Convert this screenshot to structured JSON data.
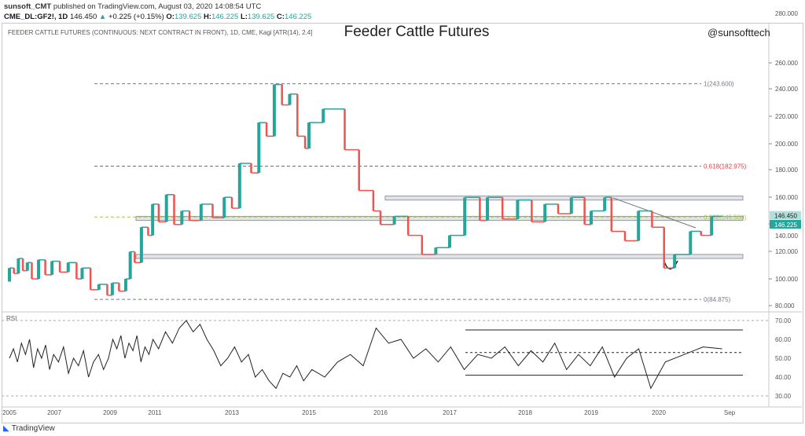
{
  "header": {
    "author": "sunsoft_CMT",
    "published": "published on TradingView.com, August 03, 2020 14:08:54 UTC",
    "symbol": "CME_DL:GF2!, 1D",
    "last": "146.450",
    "change": "+0.225 (+0.15%)",
    "o_label": "O:",
    "o": "139.625",
    "h_label": "H:",
    "h": "146.225",
    "l_label": "L:",
    "l": "139.625",
    "c_label": "C:",
    "c": "146.225"
  },
  "footer": {
    "brand": "TradingView"
  },
  "chart_data": [
    {
      "type": "line",
      "style": "kagi",
      "title": "Feeder Cattle Futures",
      "subtitle": "FEEDER CATTLE FUTURES (CONTINUOUS: NEXT CONTRACT IN FRONT), 1D, CME, Kagi [ATR(14), 2.4]",
      "watermark": "@sunsofttech",
      "y_ticks": [
        "280.000",
        "260.000",
        "240.000",
        "220.000",
        "200.000",
        "180.000",
        "160.000",
        "140.000",
        "120.000",
        "100.000",
        "80.000"
      ],
      "last_price": "146.450",
      "close_price": "146.225",
      "fib_levels": [
        {
          "label": "1(243.600)",
          "value": 243.6,
          "color": "#787b86"
        },
        {
          "label": "0.618(182.975)",
          "value": 182.975,
          "color": "#f23645"
        },
        {
          "label": "0.382(145.500)",
          "value": 145.5,
          "color": "#9fc83a"
        },
        {
          "label": "0(84.875)",
          "value": 84.875,
          "color": "#787b86"
        }
      ],
      "zones": [
        [
          158,
          161
        ],
        [
          143,
          146
        ],
        [
          115,
          118
        ]
      ],
      "colors": {
        "up": "#26a69a",
        "down": "#ef5350"
      },
      "points": [
        [
          2005,
          98
        ],
        [
          2005.2,
          108
        ],
        [
          2005.4,
          104
        ],
        [
          2005.6,
          115
        ],
        [
          2005.8,
          106
        ],
        [
          2006,
          112
        ],
        [
          2006.3,
          100
        ],
        [
          2006.6,
          114
        ],
        [
          2006.9,
          103
        ],
        [
          2007.2,
          113
        ],
        [
          2007.5,
          105
        ],
        [
          2007.8,
          112
        ],
        [
          2008,
          100
        ],
        [
          2008.3,
          108
        ],
        [
          2008.6,
          92
        ],
        [
          2008.9,
          96
        ],
        [
          2009.1,
          88
        ],
        [
          2009.4,
          97
        ],
        [
          2009.7,
          91
        ],
        [
          2009.9,
          100
        ],
        [
          2010.1,
          120
        ],
        [
          2010.4,
          112
        ],
        [
          2010.7,
          138
        ],
        [
          2010.9,
          132
        ],
        [
          2011.1,
          155
        ],
        [
          2011.3,
          142
        ],
        [
          2011.5,
          162
        ],
        [
          2011.7,
          140
        ],
        [
          2011.9,
          150
        ],
        [
          2012.2,
          143
        ],
        [
          2012.5,
          155
        ],
        [
          2012.8,
          145
        ],
        [
          2013,
          160
        ],
        [
          2013.2,
          152
        ],
        [
          2013.5,
          185
        ],
        [
          2013.7,
          178
        ],
        [
          2013.9,
          215
        ],
        [
          2014.1,
          205
        ],
        [
          2014.3,
          243
        ],
        [
          2014.5,
          228
        ],
        [
          2014.7,
          236
        ],
        [
          2014.9,
          205
        ],
        [
          2015,
          196
        ],
        [
          2015.2,
          215
        ],
        [
          2015.5,
          225
        ],
        [
          2015.7,
          195
        ],
        [
          2015.9,
          165
        ],
        [
          2016,
          150
        ],
        [
          2016.2,
          140
        ],
        [
          2016.4,
          146
        ],
        [
          2016.6,
          132
        ],
        [
          2016.8,
          118
        ],
        [
          2017,
          123
        ],
        [
          2017.2,
          132
        ],
        [
          2017.4,
          160
        ],
        [
          2017.5,
          143
        ],
        [
          2017.7,
          160
        ],
        [
          2017.9,
          144
        ],
        [
          2018.1,
          158
        ],
        [
          2018.3,
          142
        ],
        [
          2018.5,
          155
        ],
        [
          2018.7,
          148
        ],
        [
          2018.9,
          160
        ],
        [
          2019,
          140
        ],
        [
          2019.2,
          150
        ],
        [
          2019.3,
          160
        ],
        [
          2019.5,
          135
        ],
        [
          2019.7,
          128
        ],
        [
          2019.9,
          150
        ],
        [
          2020.05,
          138
        ],
        [
          2020.15,
          108
        ],
        [
          2020.3,
          118
        ],
        [
          2020.4,
          135
        ],
        [
          2020.5,
          132
        ],
        [
          2020.6,
          146
        ]
      ],
      "x_ticks": [
        [
          "2005",
          2005
        ],
        [
          "2007",
          2007
        ],
        [
          "2009",
          2009
        ],
        [
          "2011",
          2011
        ],
        [
          "2013",
          2013
        ],
        [
          "2015",
          2015
        ],
        [
          "2016",
          2016
        ],
        [
          "2017",
          2017
        ],
        [
          "2018",
          2018
        ],
        [
          "2019",
          2019
        ],
        [
          "2020",
          2020
        ],
        [
          "Sep",
          2020.67
        ]
      ]
    },
    {
      "type": "line",
      "title": "RSI",
      "y_ticks": [
        "70.00",
        "60.00",
        "50.00",
        "40.00",
        "30.00"
      ],
      "channel": [
        65,
        53,
        41
      ],
      "values": [
        50,
        55,
        48,
        58,
        52,
        60,
        45,
        55,
        50,
        57,
        44,
        52,
        48,
        56,
        42,
        50,
        46,
        54,
        40,
        48,
        52,
        44,
        50,
        60,
        55,
        62,
        50,
        58,
        54,
        62,
        48,
        56,
        52,
        60,
        55,
        64,
        58,
        66,
        70,
        64,
        68,
        60,
        54,
        46,
        50,
        56,
        48,
        52,
        40,
        44,
        38,
        34,
        42,
        40,
        46,
        38,
        44,
        40,
        48,
        52,
        46,
        66,
        58,
        60,
        50,
        55,
        48,
        56,
        44,
        52,
        50,
        56,
        46,
        54,
        48,
        58,
        44,
        52,
        46,
        56,
        40,
        50,
        55,
        34,
        48,
        52,
        56,
        55
      ]
    }
  ]
}
